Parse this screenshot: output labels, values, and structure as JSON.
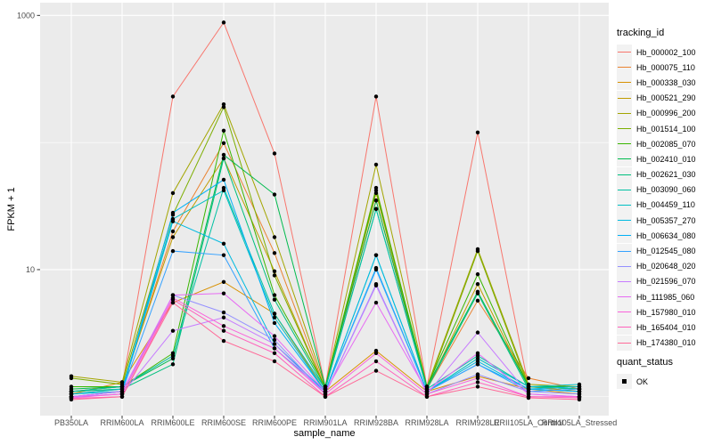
{
  "figure": {
    "background": "#FFFFFF",
    "panel_background": "#EBEBEB",
    "grid_color": "#FFFFFF",
    "axis_text_color": "#4D4D4D",
    "tick_mark_color": "#333333",
    "point_color": "#000000"
  },
  "chart_data": {
    "type": "line",
    "title": "",
    "xlabel": "sample_name",
    "ylabel": "FPKM + 1",
    "grid": true,
    "legend_position": "right",
    "x_axis": {
      "label": "sample_name",
      "categories": [
        "PB350LA",
        "RRIM600LA",
        "RRIM600LE",
        "RRIM600SE",
        "RRIM600PE",
        "RRIM901LA",
        "RRIM928BA",
        "RRIM928LA",
        "RRIM928LE",
        "RRII105LA_Control",
        "RRII105LA_Stressed"
      ]
    },
    "y_axis": {
      "label": "FPKM + 1",
      "scale": "log10",
      "ticks": [
        10,
        1000
      ],
      "minor_ticks": [
        1,
        100
      ],
      "range": [
        0.71,
        1260
      ]
    },
    "legend": {
      "title": "tracking_id"
    },
    "quant_legend": {
      "title": "quant_status",
      "items": [
        "OK"
      ],
      "marker": "black-square-point"
    },
    "points": {
      "shape": "circle",
      "color": "#000000",
      "radius": 2.2
    },
    "series": [
      {
        "name": "Hb_000002_100",
        "color": "#F8766D",
        "values": [
          1.1,
          1.2,
          230,
          880,
          82,
          1.2,
          230,
          1.2,
          120,
          1.2,
          1.1
        ]
      },
      {
        "name": "Hb_000075_110",
        "color": "#EA8331",
        "values": [
          1.05,
          1.15,
          20,
          99,
          13.5,
          1.15,
          35,
          1.15,
          5.7,
          1.4,
          1.15
        ]
      },
      {
        "name": "Hb_000338_030",
        "color": "#D89000",
        "values": [
          1.05,
          1.3,
          5.5,
          8.0,
          4.5,
          1.1,
          2.3,
          1.1,
          1.45,
          1.15,
          1.05
        ]
      },
      {
        "name": "Hb_000521_290",
        "color": "#C09B00",
        "values": [
          1.1,
          1.2,
          18,
          75,
          9.7,
          1.15,
          40,
          1.15,
          7.7,
          1.2,
          1.1
        ]
      },
      {
        "name": "Hb_000996_200",
        "color": "#A3A500",
        "values": [
          1.45,
          1.3,
          40,
          200,
          18,
          1.2,
          67,
          1.2,
          14.5,
          1.25,
          1.2
        ]
      },
      {
        "name": "Hb_001514_100",
        "color": "#7CAE00",
        "values": [
          1.4,
          1.25,
          27,
          190,
          9.0,
          1.15,
          44,
          1.15,
          14.0,
          1.2,
          1.15
        ]
      },
      {
        "name": "Hb_002085_070",
        "color": "#39B600",
        "values": [
          1.2,
          1.2,
          2.2,
          124,
          6.3,
          1.2,
          42,
          1.2,
          9.2,
          1.2,
          1.15
        ]
      },
      {
        "name": "Hb_002410_010",
        "color": "#00BB4E",
        "values": [
          1.15,
          1.2,
          2.0,
          80,
          39,
          1.2,
          35,
          1.2,
          6.7,
          1.2,
          1.2
        ]
      },
      {
        "name": "Hb_002621_030",
        "color": "#00BF7D",
        "values": [
          1.1,
          1.15,
          1.8,
          75,
          5.8,
          1.15,
          30,
          1.15,
          6.5,
          1.15,
          1.1
        ]
      },
      {
        "name": "Hb_003090_060",
        "color": "#00C1A3",
        "values": [
          1.1,
          1.2,
          2.1,
          44,
          4.5,
          1.15,
          30,
          1.15,
          2.1,
          1.2,
          1.15
        ]
      },
      {
        "name": "Hb_004459_110",
        "color": "#00BFC4",
        "values": [
          1.05,
          1.15,
          25,
          42,
          4.2,
          1.1,
          13,
          1.1,
          2.0,
          1.2,
          1.25
        ]
      },
      {
        "name": "Hb_005357_270",
        "color": "#00BAE0",
        "values": [
          1.05,
          1.1,
          24,
          16,
          2.6,
          1.1,
          13,
          1.1,
          1.9,
          1.15,
          1.2
        ]
      },
      {
        "name": "Hb_006634_080",
        "color": "#00B0F6",
        "values": [
          1.0,
          1.1,
          28,
          51,
          3.8,
          1.1,
          10.3,
          1.1,
          1.8,
          1.15,
          1.1
        ]
      },
      {
        "name": "Hb_012545_080",
        "color": "#35A2FF",
        "values": [
          1.0,
          1.1,
          14,
          13,
          2.4,
          1.1,
          10,
          1.1,
          1.8,
          1.1,
          1.15
        ]
      },
      {
        "name": "Hb_020648_020",
        "color": "#9590FF",
        "values": [
          1.0,
          1.05,
          6.3,
          4.6,
          2.8,
          1.05,
          7.7,
          1.05,
          1.5,
          1.1,
          1.05
        ]
      },
      {
        "name": "Hb_021596_070",
        "color": "#C77CFF",
        "values": [
          1.0,
          1.05,
          3.3,
          4.2,
          2.6,
          1.05,
          7.5,
          1.05,
          3.2,
          1.05,
          1.0
        ]
      },
      {
        "name": "Hb_111985_060",
        "color": "#E76BF3",
        "values": [
          1.0,
          1.1,
          6.3,
          6.5,
          3.0,
          1.1,
          5.5,
          1.1,
          2.2,
          1.05,
          1.0
        ]
      },
      {
        "name": "Hb_157980_010",
        "color": "#FA62DB",
        "values": [
          0.98,
          1.05,
          6.0,
          3.6,
          2.4,
          1.05,
          2.2,
          1.05,
          1.4,
          1.0,
          1.0
        ]
      },
      {
        "name": "Hb_165404_010",
        "color": "#FF62BC",
        "values": [
          0.97,
          1.0,
          5.8,
          3.3,
          2.2,
          1.0,
          1.9,
          1.0,
          1.3,
          1.0,
          0.98
        ]
      },
      {
        "name": "Hb_174380_010",
        "color": "#FF6A98",
        "values": [
          0.95,
          1.0,
          5.5,
          2.75,
          1.9,
          1.0,
          1.6,
          1.0,
          1.2,
          0.98,
          0.95
        ]
      }
    ]
  }
}
